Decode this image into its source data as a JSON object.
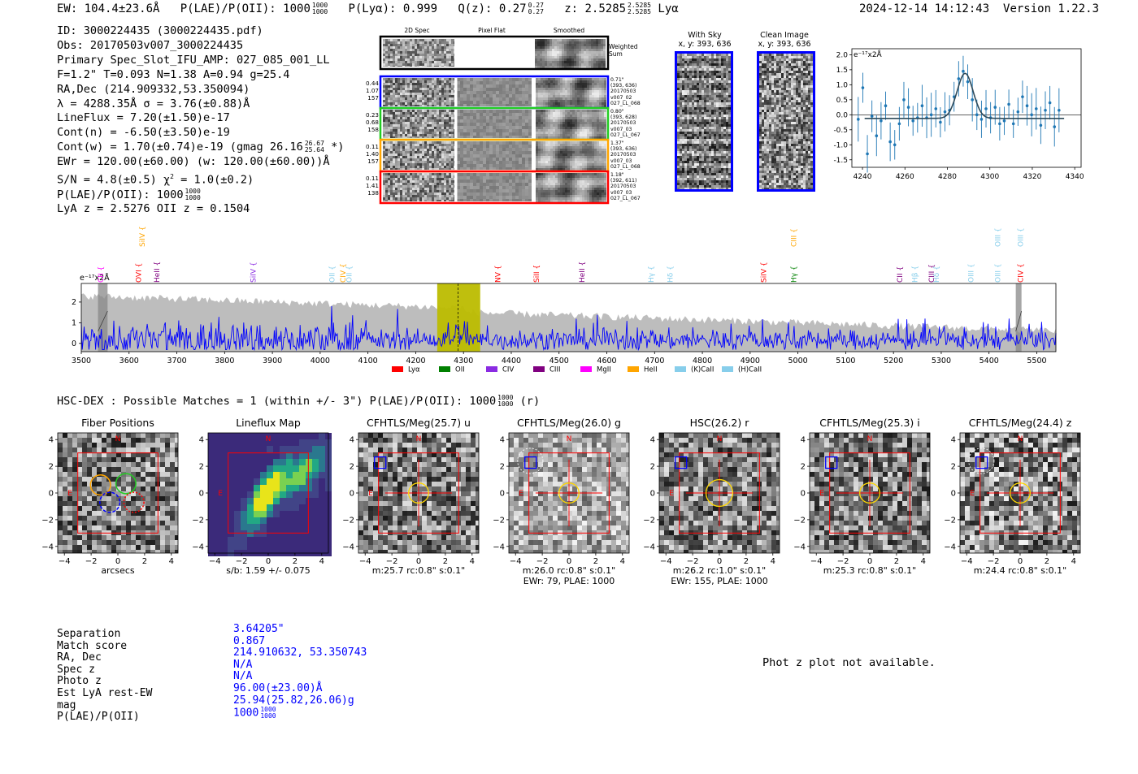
{
  "header": {
    "ew": "EW: 104.4±23.6Å",
    "plae_label": "P(LAE)/P(OII): 1000",
    "plae_hi": "1000",
    "plae_lo": "1000",
    "plya": "P(Lyα): 0.999",
    "qz_label": "Q(z): 0.27",
    "qz_hi": "0.27",
    "qz_lo": "0.27",
    "z_label": "z: 2.5285",
    "z_hi": "2.5285",
    "z_lo": "2.5285",
    "z_line": "Lyα",
    "timestamp": "2024-12-14 14:12:43",
    "version": "Version 1.22.3"
  },
  "info": {
    "id": "ID: 3000224435 (3000224435.pdf)",
    "obs": "Obs: 20170503v007_3000224435",
    "spec_slot": "Primary Spec_Slot_IFU_AMP: 027_085_001_LL",
    "fit": "F=1.2\"  T=0.093  N=1.38  A=0.94  g=25.4",
    "radec": "RA,Dec (214.909332,53.350094)",
    "lambda": "λ = 4288.35Å  σ = 3.76(±0.88)Å",
    "lineflux": "LineFlux = 7.20(±1.50)e-17",
    "contn": "Cont(n) = -6.50(±3.50)e-19",
    "contw_a": "Cont(w) = 1.70(±0.74)e-19 (gmag 26.16",
    "contw_hi": "26.67",
    "contw_lo": "25.64",
    "contw_b": "*)",
    "ewr": "EWr = 120.00(±60.00) (w: 120.00(±60.00))Å",
    "sn_a": "S/N = 4.8(±0.5)  χ",
    "sn_sup": "2",
    "sn_b": " = 1.0(±0.2)",
    "plae": "P(LAE)/P(OII): 1000",
    "plae_hi": "1000",
    "plae_lo": "1000",
    "lyaz": "LyA z = 2.5276  OII z = 0.1504"
  },
  "spec2d": {
    "headers": [
      "2D Spec",
      "Pixel Flat",
      "Smoothed"
    ],
    "weighted_label": "Weighted Sum",
    "rows": [
      {
        "color": "#0000ff",
        "left": [
          "0.44",
          "1.07",
          "157"
        ],
        "right": [
          "0.71\"",
          "(393, 636)",
          "20170503",
          "v007_02",
          "027_LL_068"
        ]
      },
      {
        "color": "#22cc22",
        "left": [
          "0.23",
          "0.68",
          "158"
        ],
        "right": [
          "0.80\"",
          "(393, 628)",
          "20170503",
          "v007_03",
          "027_LL_067"
        ]
      },
      {
        "color": "#ffa500",
        "left": [
          "0.11",
          "1.40",
          "157"
        ],
        "right": [
          "1.37\"",
          "(393, 636)",
          "20170503",
          "v007_03",
          "027_LL_068"
        ]
      },
      {
        "color": "#ff0000",
        "left": [
          "0.11",
          "1.41",
          "138"
        ],
        "right": [
          "1.18\"",
          "(392, 611)",
          "20170503",
          "v007_03",
          "027_LL_067"
        ]
      }
    ]
  },
  "with_sky": {
    "title": "With Sky",
    "coords": "x, y: 393, 636"
  },
  "clean_image": {
    "title": "Clean Image",
    "coords": "x, y: 393, 636"
  },
  "fit_plot": {
    "unit_label": "e⁻¹⁷x2Å",
    "xticks": [
      4240,
      4260,
      4280,
      4300,
      4320,
      4340
    ],
    "yticks": [
      2.0,
      1.5,
      1.0,
      0.5,
      0.0,
      -0.5,
      -1.0,
      -1.5
    ],
    "xlim": [
      4235,
      4343
    ],
    "ylim": [
      -1.75,
      2.2
    ]
  },
  "full_spectrum": {
    "unit_label": "e⁻¹⁷x2Å",
    "xlim": [
      3500,
      5540
    ],
    "ylim": [
      -0.4,
      2.9
    ],
    "xticks": [
      3500,
      3600,
      3700,
      3800,
      3900,
      4000,
      4100,
      4200,
      4300,
      4400,
      4500,
      4600,
      4700,
      4800,
      4900,
      5000,
      5100,
      5200,
      5300,
      5400,
      5500
    ],
    "yticks": [
      0,
      1,
      2
    ],
    "highlight": [
      4245,
      4335
    ],
    "line_marker": 4288.35,
    "masked": [
      [
        3535,
        3555
      ],
      [
        5456,
        5468
      ]
    ],
    "labels": [
      {
        "text": "CII",
        "wl": 3541,
        "color": "#ff00ff",
        "tier": 2
      },
      {
        "text": "SiIV",
        "wl": 3628,
        "color": "#ffa500",
        "tier": 1
      },
      {
        "text": "OVI",
        "wl": 3620,
        "color": "#ff0000",
        "tier": 2
      },
      {
        "text": "HeII",
        "wl": 3658,
        "color": "#800080",
        "tier": 2
      },
      {
        "text": "SiIV",
        "wl": 3860,
        "color": "#8a2be2",
        "tier": 2
      },
      {
        "text": "OII",
        "wl": 4025,
        "color": "#87ceeb",
        "tier": 2
      },
      {
        "text": "CIV",
        "wl": 4048,
        "color": "#ffa500",
        "tier": 2
      },
      {
        "text": "OII",
        "wl": 4061,
        "color": "#87ceeb",
        "tier": 2
      },
      {
        "text": "NV",
        "wl": 4372,
        "color": "#ff0000",
        "tier": 2
      },
      {
        "text": "SiII",
        "wl": 4453,
        "color": "#ff0000",
        "tier": 2
      },
      {
        "text": "HeII",
        "wl": 4548,
        "color": "#800080",
        "tier": 2
      },
      {
        "text": "Hγ",
        "wl": 4693,
        "color": "#87ceeb",
        "tier": 2
      },
      {
        "text": "Hδ",
        "wl": 4733,
        "color": "#87ceeb",
        "tier": 2
      },
      {
        "text": "SiIV",
        "wl": 4928,
        "color": "#ff0000",
        "tier": 2
      },
      {
        "text": "CIII",
        "wl": 4991,
        "color": "#ffa500",
        "tier": 1
      },
      {
        "text": "Hγ",
        "wl": 4991,
        "color": "#008000",
        "tier": 2
      },
      {
        "text": "CII",
        "wl": 5213,
        "color": "#800080",
        "tier": 2
      },
      {
        "text": "Hβ",
        "wl": 5245,
        "color": "#87ceeb",
        "tier": 2
      },
      {
        "text": "CIII",
        "wl": 5280,
        "color": "#800080",
        "tier": 2
      },
      {
        "text": "Hδ",
        "wl": 5290,
        "color": "#87ceeb",
        "tier": 2
      },
      {
        "text": "OIII",
        "wl": 5362,
        "color": "#87ceeb",
        "tier": 2
      },
      {
        "text": "OIII",
        "wl": 5418,
        "color": "#87ceeb",
        "tier": 1
      },
      {
        "text": "OIII",
        "wl": 5418,
        "color": "#87ceeb",
        "tier": 2
      },
      {
        "text": "OIII",
        "wl": 5466,
        "color": "#87ceeb",
        "tier": 1
      },
      {
        "text": "CIV",
        "wl": 5466,
        "color": "#ff0000",
        "tier": 2
      }
    ],
    "legend": [
      {
        "label": "Lyα",
        "color": "#ff0000"
      },
      {
        "label": "OII",
        "color": "#008000"
      },
      {
        "label": "CIV",
        "color": "#8a2be2"
      },
      {
        "label": "CIII",
        "color": "#800080"
      },
      {
        "label": "MgII",
        "color": "#ff00ff"
      },
      {
        "label": "HeII",
        "color": "#ffa500"
      },
      {
        "label": "(K)CaII",
        "color": "#87ceeb"
      },
      {
        "label": "(H)CaII",
        "color": "#87ceeb"
      }
    ]
  },
  "hsc_dex": {
    "line_a": "HSC-DEX : Possible Matches = 1 (within +/- 3\")  P(LAE)/P(OII): 1000",
    "hi": "1000",
    "lo": "1000",
    "line_b": "(r)"
  },
  "cutouts": [
    {
      "title": "Fiber Positions",
      "caption": [
        "arcsecs"
      ],
      "style": "fiber"
    },
    {
      "title": "Lineflux Map",
      "caption": [
        "s/b: 1.59 +/- 0.075"
      ],
      "style": "lineflux"
    },
    {
      "title": "CFHTLS/Meg(25.7) u",
      "caption": [
        "m:25.7 rc:0.8\"  s:0.1\""
      ],
      "style": "phot",
      "dashed": false
    },
    {
      "title": "CFHTLS/Meg(26.0) g",
      "caption": [
        "m:26.0 rc:0.8\"  s:0.1\"",
        "EWr: 79, PLAE: 1000"
      ],
      "style": "phot",
      "dashed": true
    },
    {
      "title": "HSC(26.2) r",
      "caption": [
        "m:26.2 rc:1.0\"  s:0.1\"",
        "EWr: 155, PLAE: 1000"
      ],
      "style": "phot",
      "dashed": false,
      "bigcircle": true
    },
    {
      "title": "CFHTLS/Meg(25.3) i",
      "caption": [
        "m:25.3 rc:0.8\"  s:0.1\""
      ],
      "style": "phot",
      "dashed": false
    },
    {
      "title": "CFHTLS/Meg(24.4) z",
      "caption": [
        "m:24.4 rc:0.8\"  s:0.1\""
      ],
      "style": "phot",
      "dashed": true
    }
  ],
  "cutout_axis": {
    "ticks": [
      -4,
      -2,
      0,
      2,
      4
    ],
    "north": "N",
    "east": "E"
  },
  "match_table": {
    "labels": [
      "Separation",
      "Match score",
      "RA, Dec",
      "Spec z",
      "Photo z",
      "Est LyA rest-EW",
      "mag",
      "P(LAE)/P(OII)"
    ],
    "values": [
      "3.64205\"",
      "0.867",
      "214.910632, 53.350743",
      "N/A",
      "N/A",
      "96.00(±23.00)Å",
      "25.94(25.82,26.06)g",
      "1000"
    ],
    "plae_hi": "1000",
    "plae_lo": "1000"
  },
  "photz_note": "Phot z plot not available."
}
